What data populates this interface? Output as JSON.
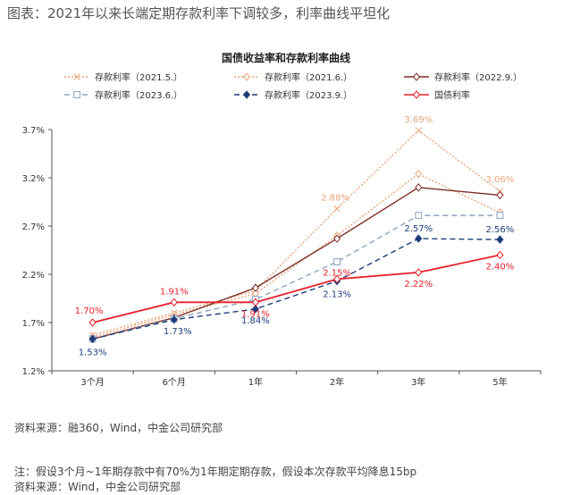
{
  "figure_caption": "图表：2021年以来长端定期存款利率下调较多，利率曲线平坦化",
  "source_1": "资料来源：融360，Wind，中金公司研究部",
  "note": "注：假设3个月~1年期存款中有70%为1年期定期存款，假设本次存款平均降息15bp",
  "source_2": "资料来源：Wind，中金公司研究部",
  "chart_data": {
    "type": "line",
    "title": "国债收益率和存款利率曲线",
    "categories": [
      "3个月",
      "6个月",
      "1年",
      "2年",
      "3年",
      "5年"
    ],
    "y_ticks": [
      "1.2%",
      "1.7%",
      "2.2%",
      "2.7%",
      "3.2%",
      "3.7%"
    ],
    "ylim": [
      1.2,
      3.7
    ],
    "grid": false,
    "legend_position": "top",
    "series": [
      {
        "name": "存款利率（2021.5.）",
        "values": [
          1.57,
          1.8,
          2.03,
          2.88,
          3.69,
          3.06
        ],
        "color": "#E9A57A",
        "dash": "2,2",
        "marker": "x"
      },
      {
        "name": "存款利率（2021.6.）",
        "values": [
          1.55,
          1.78,
          2.0,
          2.6,
          3.24,
          2.84
        ],
        "color": "#E9A57A",
        "dash": "2,2",
        "marker": "diamond-open"
      },
      {
        "name": "存款利率（2022.9.）",
        "values": [
          1.53,
          1.75,
          2.06,
          2.57,
          3.1,
          3.02
        ],
        "color": "#7B2E25",
        "dash": "",
        "marker": "diamond-open"
      },
      {
        "name": "存款利率（2023.6.）",
        "values": [
          1.53,
          1.74,
          1.94,
          2.33,
          2.81,
          2.81
        ],
        "color": "#8DA3BF",
        "dash": "6,4",
        "marker": "square-open"
      },
      {
        "name": "存款利率（2023.9.）",
        "values": [
          1.53,
          1.73,
          1.84,
          2.13,
          2.57,
          2.56
        ],
        "color": "#1F3D7A",
        "dash": "6,4",
        "marker": "diamond-filled"
      },
      {
        "name": "国债利率",
        "values": [
          1.7,
          1.91,
          1.91,
          2.15,
          2.22,
          2.4
        ],
        "color": "#E8202A",
        "dash": "",
        "marker": "diamond-open"
      }
    ],
    "data_labels": [
      {
        "series": 0,
        "index": 4,
        "text": "3.69%"
      },
      {
        "series": 0,
        "index": 5,
        "text": "3.06%"
      },
      {
        "series": 0,
        "index": 3,
        "text": "2.88%"
      },
      {
        "series": 4,
        "index": 0,
        "text": "1.53%"
      },
      {
        "series": 4,
        "index": 1,
        "text": "1.73%"
      },
      {
        "series": 4,
        "index": 2,
        "text": "1.84%"
      },
      {
        "series": 4,
        "index": 3,
        "text": "2.13%"
      },
      {
        "series": 4,
        "index": 4,
        "text": "2.57%"
      },
      {
        "series": 4,
        "index": 5,
        "text": "2.56%"
      },
      {
        "series": 5,
        "index": 0,
        "text": "1.70%"
      },
      {
        "series": 5,
        "index": 1,
        "text": "1.91%"
      },
      {
        "series": 5,
        "index": 2,
        "text": "1.91%"
      },
      {
        "series": 5,
        "index": 3,
        "text": "2.15%"
      },
      {
        "series": 5,
        "index": 4,
        "text": "2.22%"
      },
      {
        "series": 5,
        "index": 5,
        "text": "2.40%"
      }
    ]
  }
}
